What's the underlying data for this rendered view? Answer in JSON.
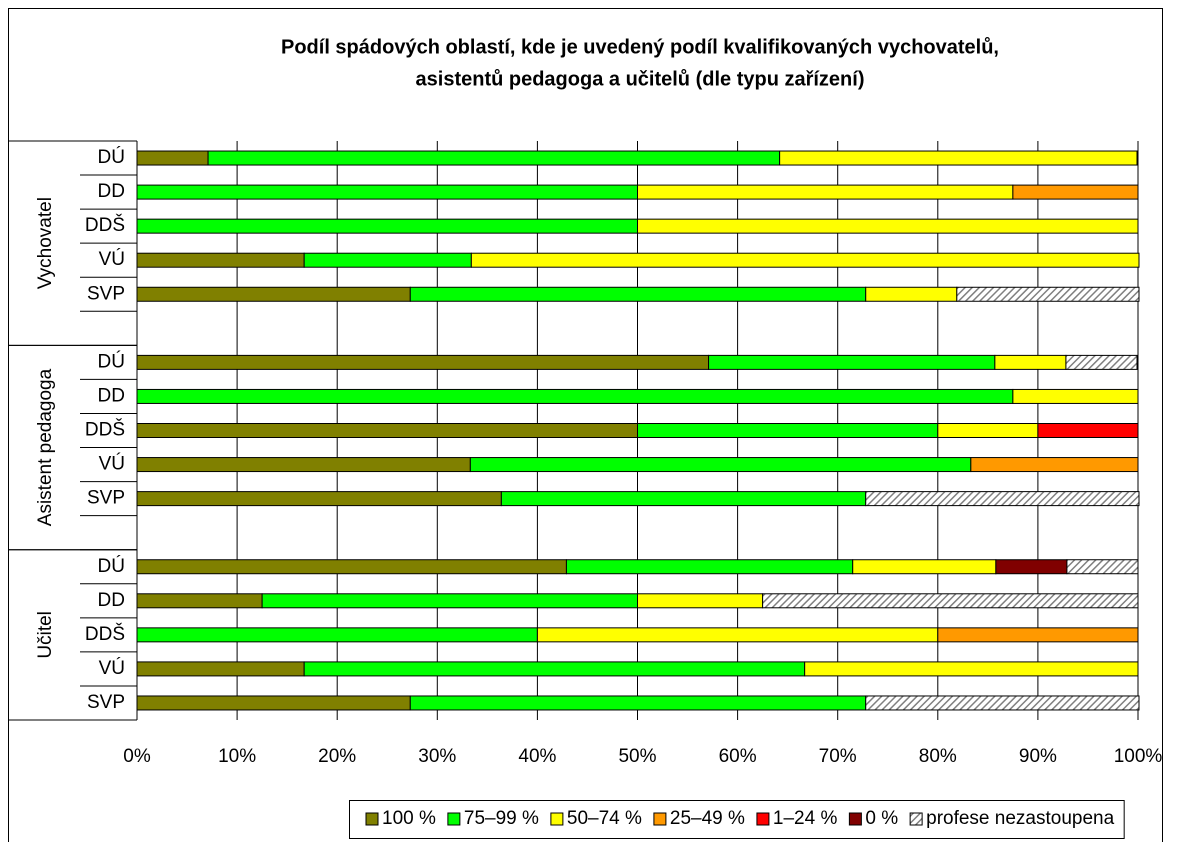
{
  "chart_data": {
    "type": "stacked_barh",
    "title": [
      "Podíl spádových oblastí, kde je uvedený podíl kvalifikovaných vychovatelů,",
      "asistentů pedagoga a učitelů (dle typu zařízení)"
    ],
    "groups": [
      "Vychovatel",
      "Asistent pedagoga",
      "Učitel"
    ],
    "categories": [
      "DÚ",
      "DD",
      "DDŠ",
      "VÚ",
      "SVP",
      null,
      "DÚ",
      "DD",
      "DDŠ",
      "VÚ",
      "SVP",
      null,
      "DÚ",
      "DD",
      "DDŠ",
      "VÚ",
      "SVP"
    ],
    "series": [
      {
        "name": "100 %",
        "color": "#808000",
        "values": [
          7.1,
          0,
          0,
          16.7,
          27.3,
          null,
          57.1,
          0,
          50,
          33.3,
          36.4,
          null,
          42.9,
          12.5,
          0,
          16.7,
          27.3
        ]
      },
      {
        "name": "75–99 %",
        "color": "#00ff00",
        "values": [
          57.1,
          50,
          50,
          16.7,
          45.5,
          null,
          28.6,
          87.5,
          30,
          50,
          36.4,
          null,
          28.6,
          37.5,
          40,
          50,
          45.5
        ]
      },
      {
        "name": "50–74 %",
        "color": "#ffff00",
        "values": [
          35.7,
          37.5,
          50,
          66.7,
          9.1,
          null,
          7.1,
          12.5,
          10,
          0,
          0,
          null,
          14.3,
          12.5,
          40,
          33.3,
          0
        ]
      },
      {
        "name": "25–49 %",
        "color": "#ff9900",
        "values": [
          0,
          12.5,
          0,
          0,
          0,
          null,
          0,
          0,
          0,
          16.7,
          0,
          null,
          0,
          0,
          20,
          0,
          0
        ]
      },
      {
        "name": "1–24 %",
        "color": "#ff0000",
        "values": [
          0,
          0,
          0,
          0,
          0,
          null,
          0,
          0,
          10,
          0,
          0,
          null,
          0,
          0,
          0,
          0,
          0
        ]
      },
      {
        "name": "0 %",
        "color": "#800000",
        "values": [
          0,
          0,
          0,
          0,
          0,
          null,
          0,
          0,
          0,
          0,
          0,
          null,
          7.1,
          0,
          0,
          0,
          0
        ]
      },
      {
        "name": "profese nezastoupena",
        "color": "#c0c0c0",
        "pattern": "hatch",
        "values": [
          0,
          0,
          0,
          0,
          18.2,
          null,
          7.1,
          0,
          0,
          0,
          27.3,
          null,
          7.1,
          37.5,
          0,
          0,
          27.3
        ]
      }
    ],
    "xlim": [
      0,
      100
    ],
    "xticks": [
      {
        "value": 0,
        "label": "0%"
      },
      {
        "value": 10,
        "label": "10%"
      },
      {
        "value": 20,
        "label": "20%"
      },
      {
        "value": 30,
        "label": "30%"
      },
      {
        "value": 40,
        "label": "40%"
      },
      {
        "value": 50,
        "label": "50%"
      },
      {
        "value": 60,
        "label": "60%"
      },
      {
        "value": 70,
        "label": "70%"
      },
      {
        "value": 80,
        "label": "80%"
      },
      {
        "value": 90,
        "label": "90%"
      },
      {
        "value": 100,
        "label": "100%"
      }
    ],
    "grid": true,
    "legend": "bottom"
  }
}
